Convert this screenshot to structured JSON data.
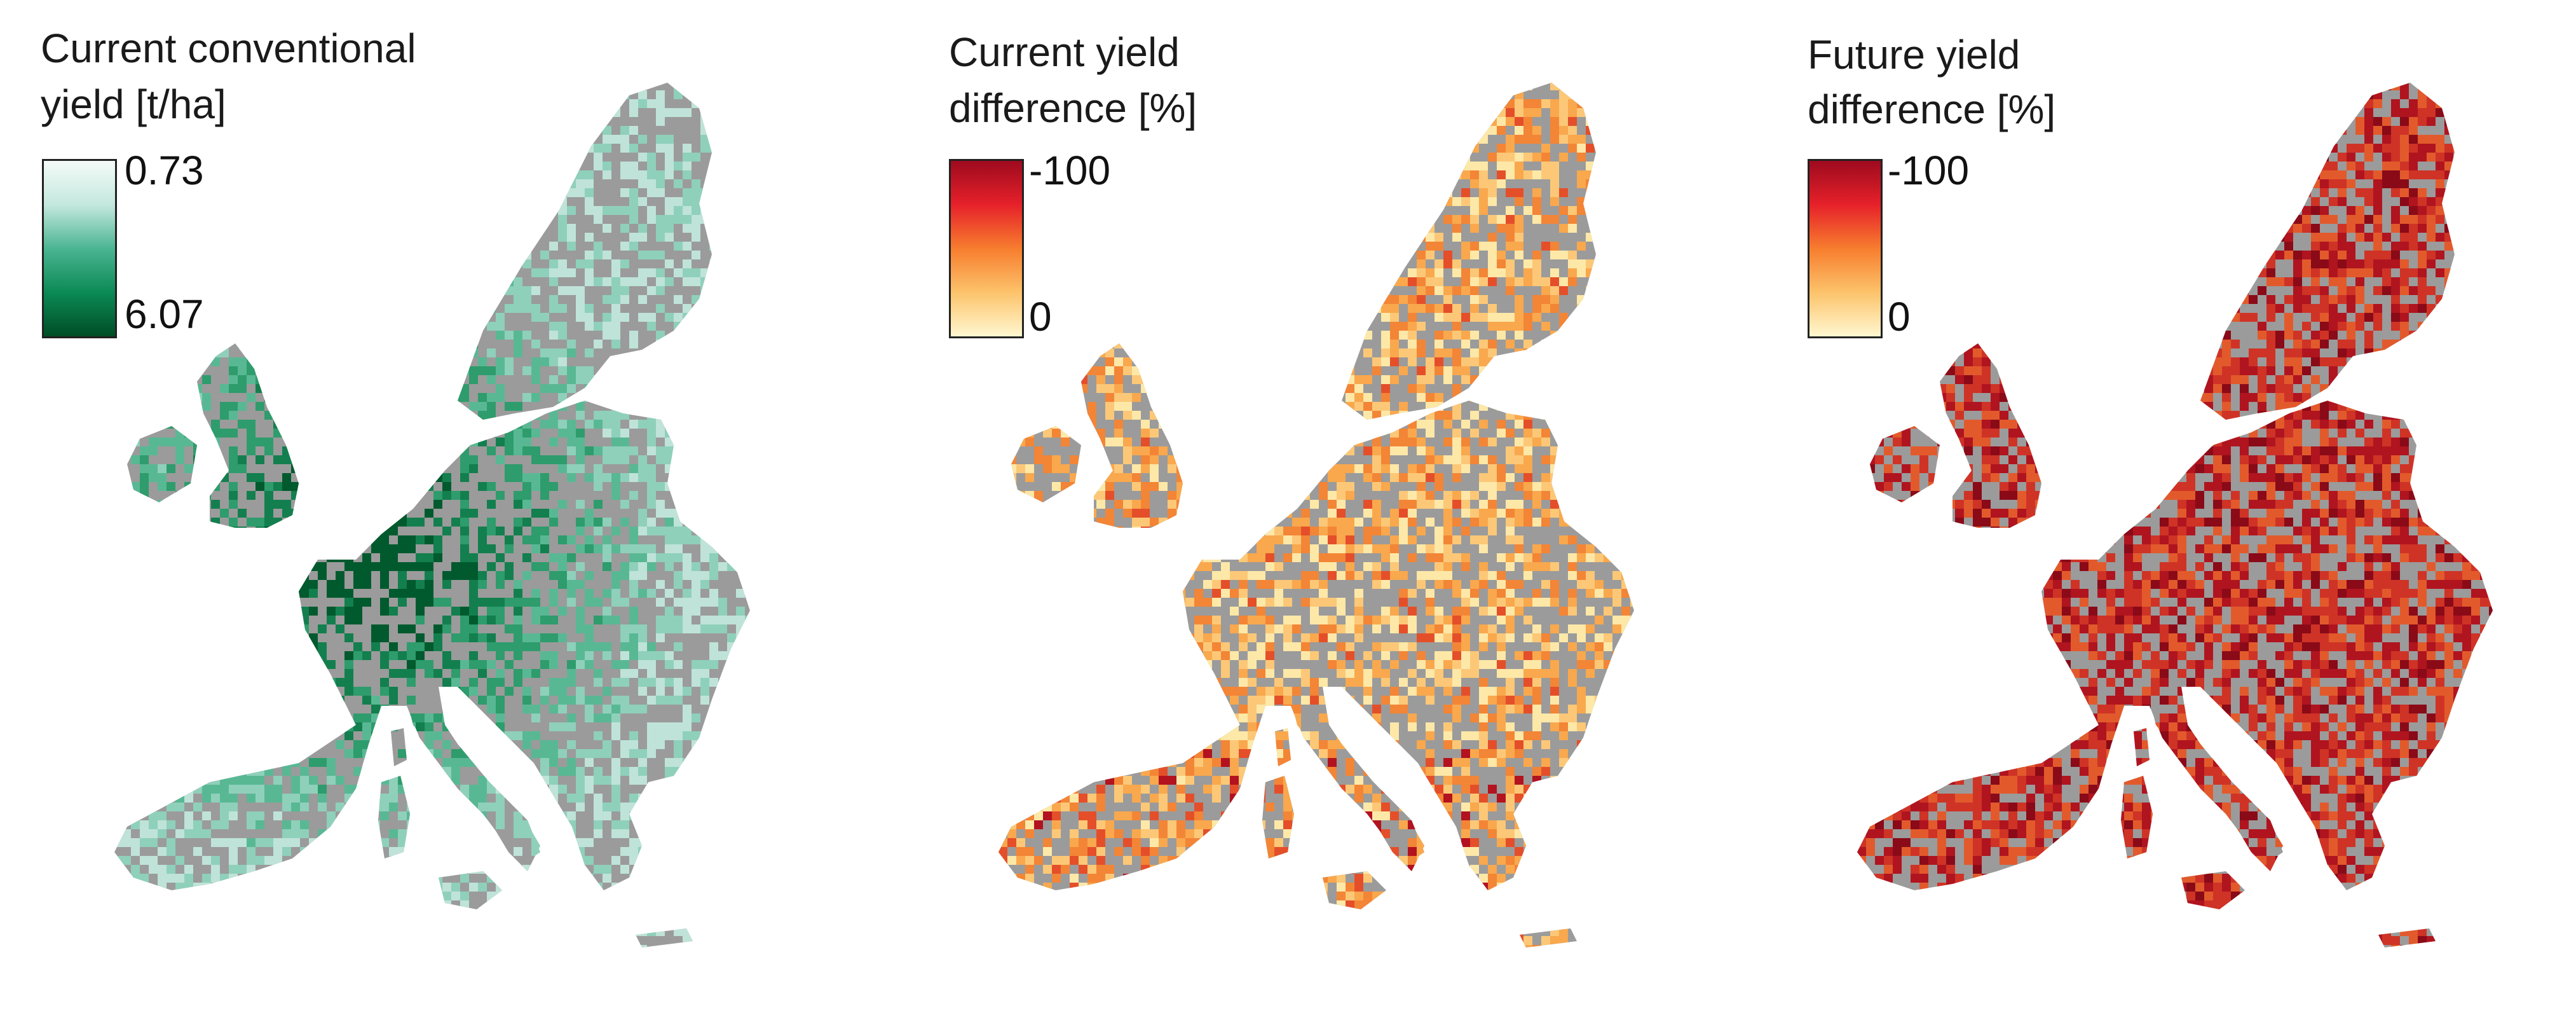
{
  "panels": [
    {
      "id": "panel-1",
      "title_line1": "Current conventional",
      "title_line2": "yield [t/ha]",
      "legend_top": "0.73",
      "legend_bottom": "6.07",
      "legend_colors": [
        "#f4fbf8",
        "#c4e8de",
        "#4bb592",
        "#0b8a55",
        "#004d25"
      ],
      "palette": [
        "#bfe3d8",
        "#8fd0bb",
        "#59b894",
        "#2e9c6c",
        "#137f4e",
        "#005a2e"
      ],
      "land_color": "#9b9b9b"
    },
    {
      "id": "panel-2",
      "title_line1": "Current yield",
      "title_line2": "difference [%]",
      "legend_top": "-100",
      "legend_bottom": "0",
      "legend_colors": [
        "#9e0a1e",
        "#e6212a",
        "#f77d2e",
        "#fcc36b",
        "#fff7d0"
      ],
      "palette": [
        "#fde8a8",
        "#fcc877",
        "#f9a84d",
        "#f38536",
        "#e44f2a",
        "#b3121f"
      ],
      "land_color": "#9b9b9b"
    },
    {
      "id": "panel-3",
      "title_line1": "Future yield",
      "title_line2": "difference [%]",
      "legend_top": "-100",
      "legend_bottom": "0",
      "legend_colors": [
        "#9e0a1e",
        "#e6212a",
        "#f77d2e",
        "#fcc36b",
        "#fff7d0"
      ],
      "palette": [
        "#f7c27a",
        "#f08a42",
        "#e25a2c",
        "#cf3326",
        "#b0141f",
        "#8a0a18"
      ],
      "land_color": "#9b9b9b"
    }
  ]
}
